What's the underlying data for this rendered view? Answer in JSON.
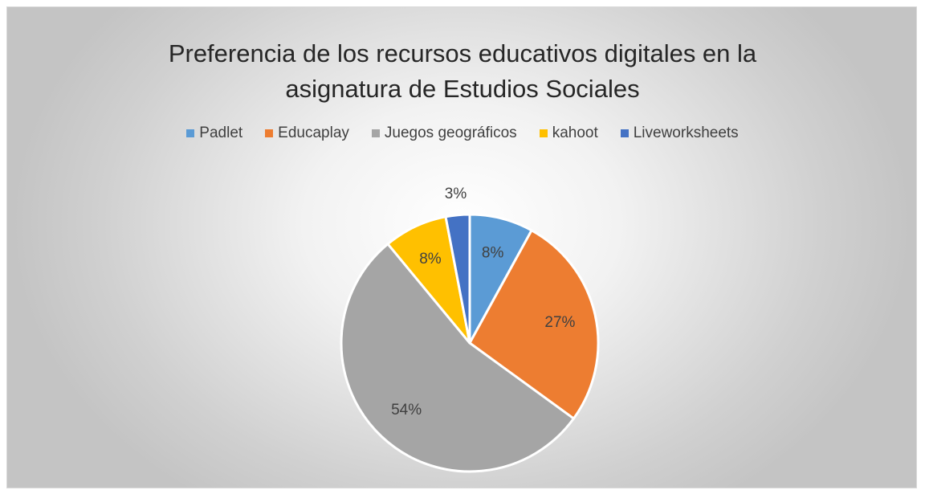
{
  "chart_data": {
    "type": "pie",
    "title": "Preferencia de los recursos educativos digitales en la asignatura de Estudios Sociales",
    "categories": [
      "Padlet",
      "Educaplay",
      "Juegos geográficos",
      "kahoot",
      "Liveworksheets"
    ],
    "values": [
      8,
      27,
      54,
      8,
      3
    ],
    "value_labels": [
      "8%",
      "27%",
      "54%",
      "8%",
      "3%"
    ],
    "colors": [
      "#5b9bd5",
      "#ed7d31",
      "#a5a5a5",
      "#ffc000",
      "#4472c4"
    ],
    "legend": "top"
  }
}
